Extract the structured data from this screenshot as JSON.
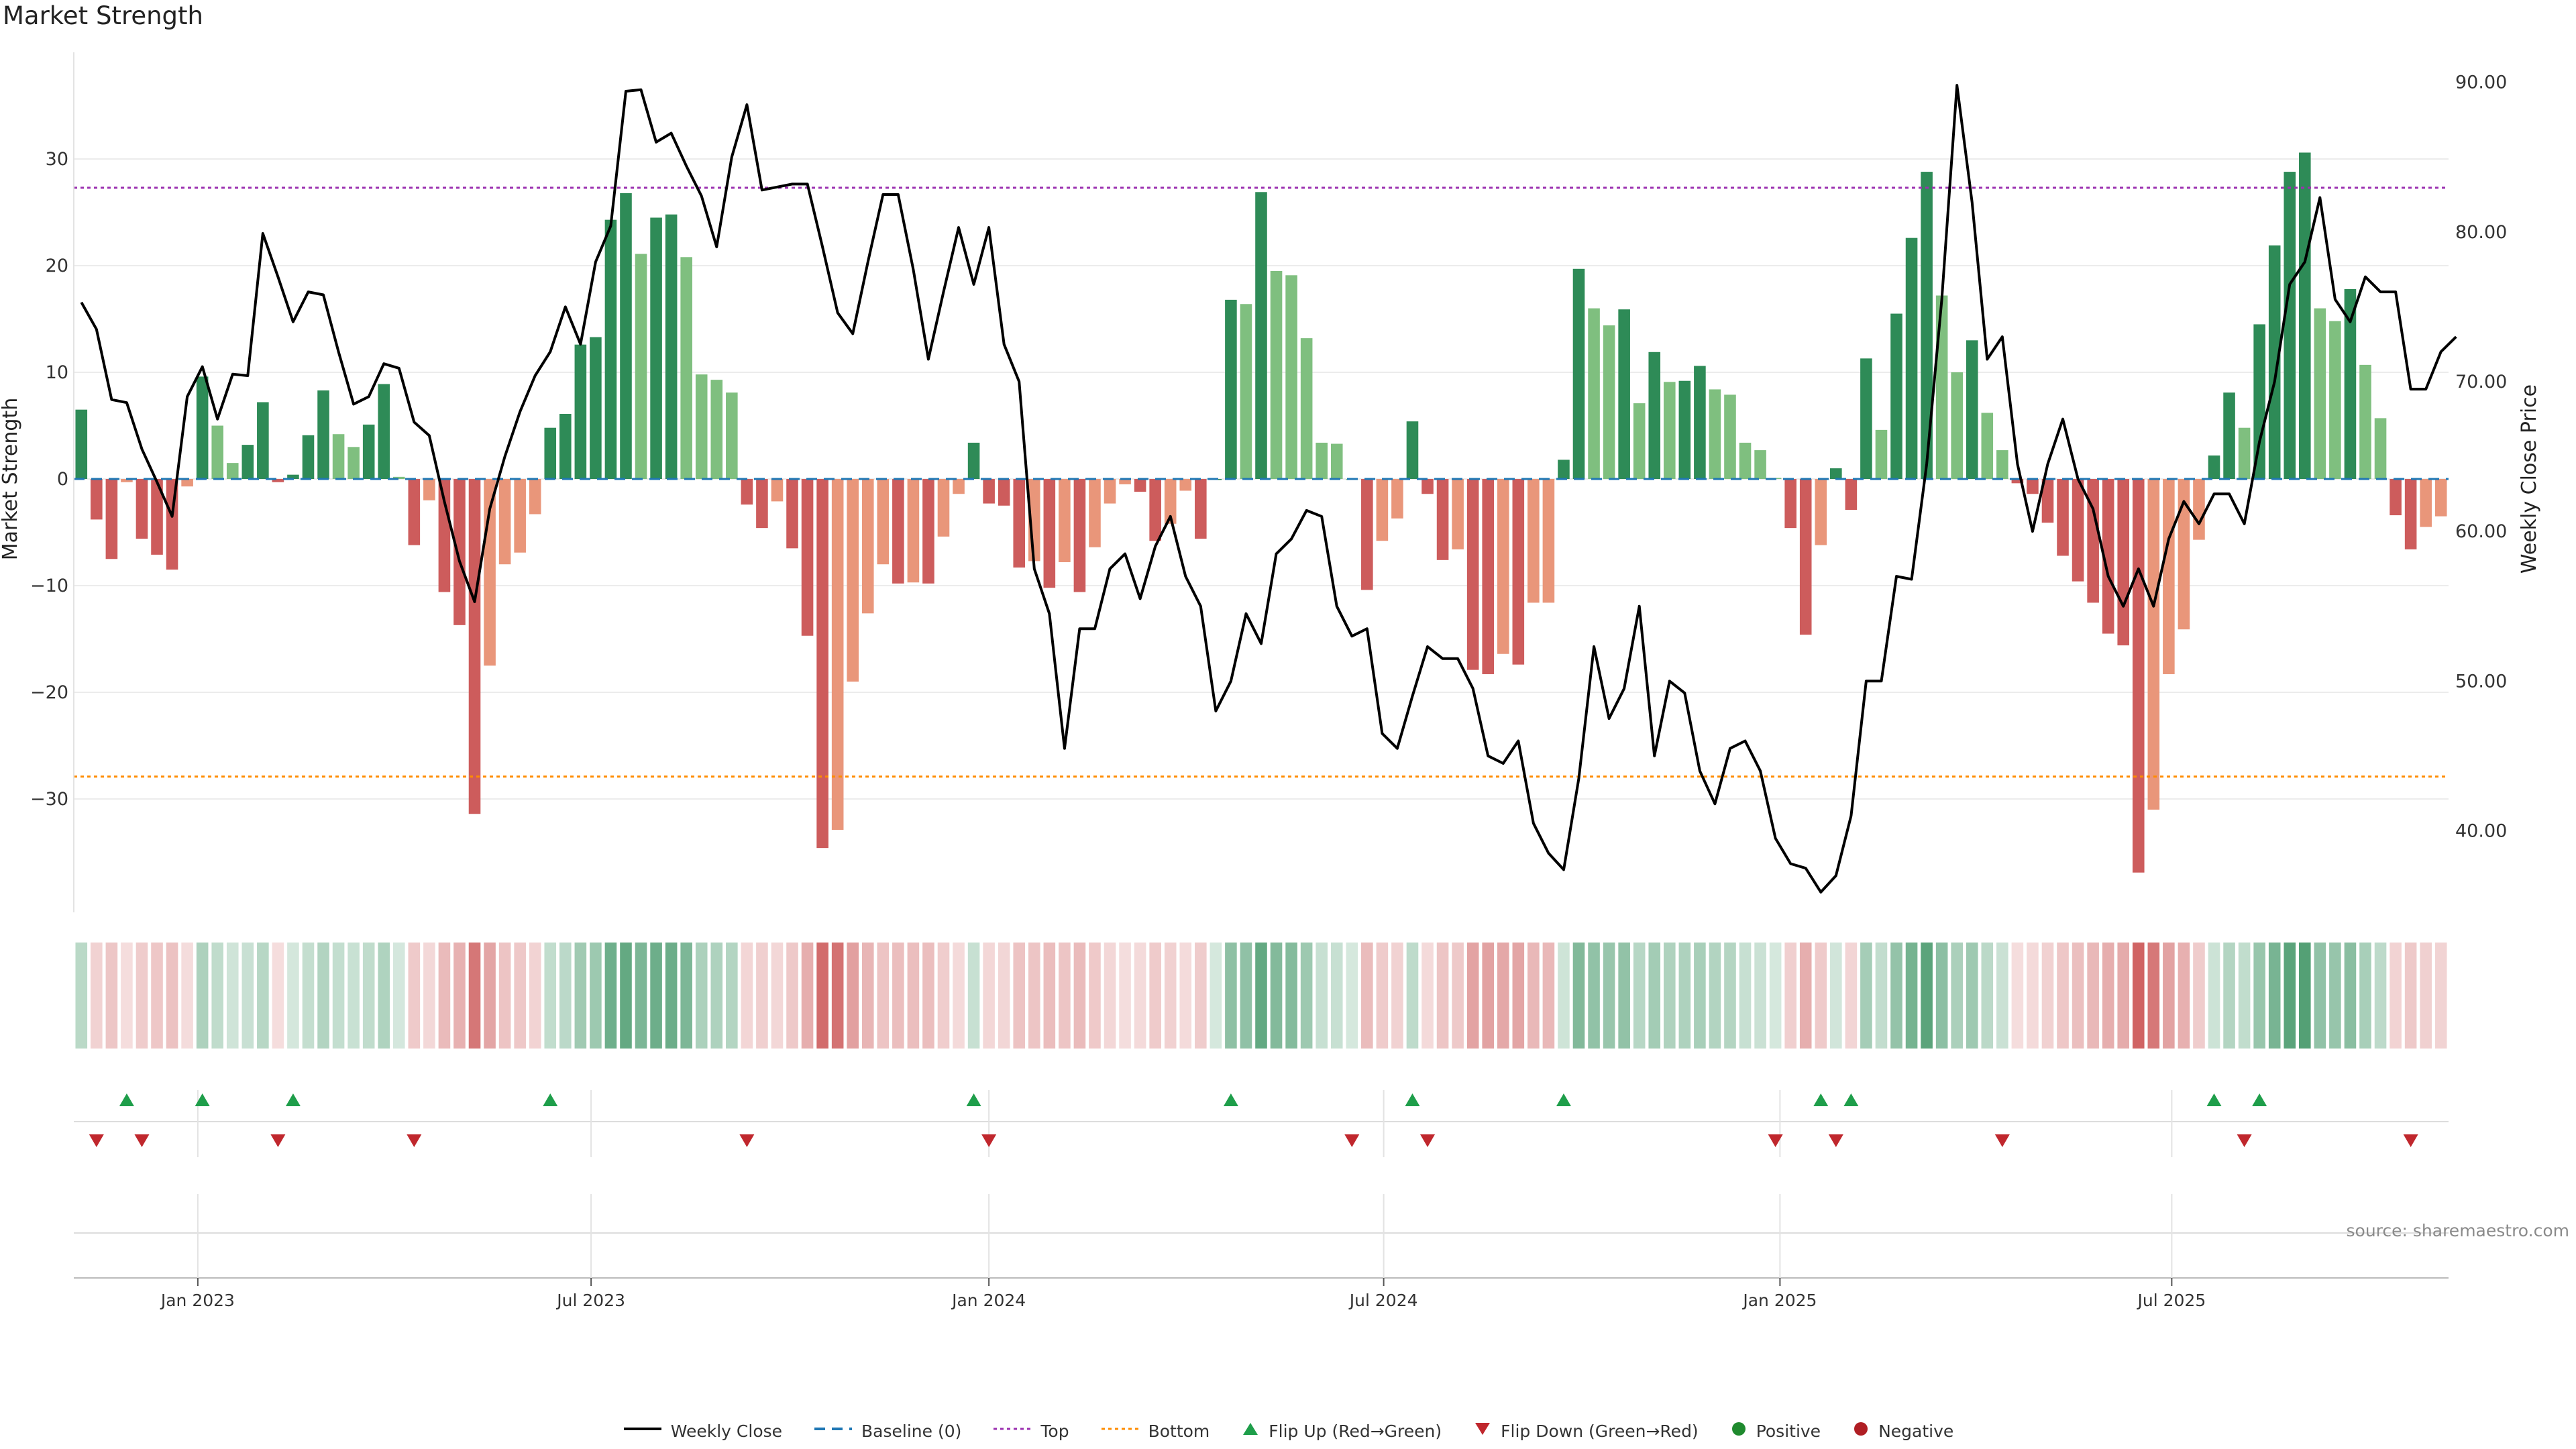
{
  "title": "Market Strength",
  "source": "source: sharemaestro.com",
  "colors": {
    "strong_pos": "#2e8b57",
    "weak_pos": "#7fbf7f",
    "strong_neg": "#cd5c5c",
    "weak_neg": "#e9967a",
    "price": "#000000",
    "baseline": "#1f77b4",
    "top": "#9b30b0",
    "bottom": "#ff8c00",
    "flip_up": "#1e9e4a",
    "flip_down": "#c0272d"
  },
  "chart_data": {
    "type": "bar",
    "title": "Market Strength",
    "ylabel": "Market Strength",
    "y2label": "Weekly Close Price",
    "ylim": [
      -40,
      40
    ],
    "y2lim": [
      35,
      92
    ],
    "yticks": [
      "30",
      "20",
      "10",
      "0",
      "−10",
      "−20",
      "−30"
    ],
    "yticks_values": [
      30,
      20,
      10,
      0,
      -10,
      -20,
      -30
    ],
    "y2ticks": [
      "90.00",
      "80.00",
      "70.00",
      "60.00",
      "50.00",
      "40.00"
    ],
    "y2ticks_values": [
      90,
      80,
      70,
      60,
      50,
      40
    ],
    "x_labels": [
      "Jan 2023",
      "Jul 2023",
      "Jan 2024",
      "Jul 2024",
      "Jan 2025",
      "Jul 2025"
    ],
    "x_label_weeks": [
      8.2,
      34.2,
      60.5,
      86.6,
      112.8,
      138.7
    ],
    "top_line": 27.3,
    "bottom_line": -27.9,
    "strength": [
      6.5,
      -3.8,
      -7.5,
      -0.3,
      -5.6,
      -7.1,
      -8.5,
      -0.7,
      9.6,
      5.0,
      1.5,
      3.2,
      7.2,
      -0.3,
      0.4,
      4.1,
      8.3,
      4.2,
      3.0,
      5.1,
      8.9,
      0.2,
      -6.2,
      -2.0,
      -10.6,
      -13.7,
      -31.4,
      -17.5,
      -8.0,
      -6.9,
      -3.3,
      4.8,
      6.1,
      12.6,
      13.3,
      24.3,
      26.8,
      21.1,
      24.5,
      24.8,
      20.8,
      9.8,
      9.3,
      8.1,
      -2.4,
      -4.6,
      -2.1,
      -6.5,
      -14.7,
      -34.6,
      -32.9,
      -19.0,
      -12.6,
      -8.0,
      -9.8,
      -9.7,
      -9.8,
      -5.4,
      -1.4,
      3.4,
      -2.3,
      -2.5,
      -8.3,
      -7.7,
      -10.2,
      -7.8,
      -10.6,
      -6.4,
      -2.3,
      -0.5,
      -1.2,
      -5.8,
      -4.2,
      -1.1,
      -5.6,
      0.0,
      16.8,
      16.4,
      26.9,
      19.5,
      19.1,
      13.2,
      3.4,
      3.3,
      0.0,
      -10.4,
      -5.8,
      -3.7,
      5.4,
      -1.4,
      -7.6,
      -6.6,
      -17.9,
      -18.3,
      -16.4,
      -17.4,
      -11.6,
      -11.6,
      1.8,
      19.7,
      16.0,
      14.4,
      15.9,
      7.1,
      11.9,
      9.1,
      9.2,
      10.6,
      8.4,
      7.9,
      3.4,
      2.7,
      0.1,
      -4.6,
      -14.6,
      -6.2,
      1.0,
      -2.9,
      11.3,
      4.6,
      15.5,
      22.6,
      28.8,
      17.2,
      10.0,
      13.0,
      6.2,
      2.7,
      -0.4,
      -1.4,
      -4.1,
      -7.2,
      -9.6,
      -11.6,
      -14.5,
      -15.6,
      -36.9,
      -31.0,
      -18.3,
      -14.1,
      -5.7,
      2.2,
      8.1,
      4.8,
      14.5,
      21.9,
      28.8,
      30.6,
      16.0,
      14.8,
      17.8,
      10.7,
      5.7,
      -3.4,
      -6.6,
      -4.5,
      -3.5
    ],
    "price": [
      75.3,
      73.5,
      68.8,
      68.6,
      65.5,
      63.3,
      61.0,
      69.0,
      71.0,
      67.5,
      70.5,
      70.4,
      79.9,
      77.0,
      74.0,
      76.0,
      75.8,
      72.0,
      68.5,
      69.0,
      71.2,
      70.9,
      67.3,
      66.4,
      62.0,
      58.0,
      55.3,
      61.5,
      65.0,
      68.0,
      70.4,
      72.0,
      75.0,
      72.5,
      78.0,
      80.4,
      89.4,
      89.5,
      86.0,
      86.6,
      84.4,
      82.4,
      79.0,
      85.0,
      88.5,
      82.8,
      83.0,
      83.2,
      83.2,
      79.0,
      74.6,
      73.2,
      78.0,
      82.5,
      82.5,
      77.5,
      71.5,
      76.0,
      80.3,
      76.5,
      80.3,
      72.5,
      70.0,
      57.5,
      54.5,
      45.5,
      53.5,
      53.5,
      57.5,
      58.5,
      55.5,
      59.0,
      61.0,
      57.0,
      55.0,
      48.0,
      50.0,
      54.5,
      52.5,
      58.5,
      59.5,
      61.4,
      61.0,
      55.0,
      53.0,
      53.5,
      46.5,
      45.5,
      49.0,
      52.3,
      51.5,
      51.5,
      49.5,
      45.0,
      44.5,
      46.0,
      40.5,
      38.5,
      37.4,
      43.5,
      52.3,
      47.5,
      49.5,
      55.0,
      45.0,
      50.0,
      49.2,
      44.0,
      41.8,
      45.5,
      46.0,
      44.0,
      39.5,
      37.8,
      37.5,
      35.9,
      37.0,
      41.0,
      50.0,
      50.0,
      57.0,
      56.8,
      64.5,
      75.5,
      89.8,
      82.0,
      71.5,
      73.0,
      64.5,
      60.0,
      64.5,
      67.5,
      63.5,
      61.5,
      57.0,
      55.0,
      57.5,
      55.0,
      59.5,
      62.0,
      60.5,
      62.5,
      62.5,
      60.5,
      66.0,
      70.0,
      76.5,
      78.0,
      82.3,
      75.5,
      74.0,
      77.0,
      76.0,
      76.0,
      69.5,
      69.5,
      72.0,
      73.0
    ],
    "flip_up_weeks": [
      3,
      8,
      14,
      31,
      59,
      76,
      88,
      98,
      115,
      117,
      141,
      144
    ],
    "flip_down_weeks": [
      1,
      4,
      13,
      22,
      44,
      60,
      84,
      89,
      112,
      116,
      127,
      143,
      154
    ]
  },
  "legend": [
    {
      "key": "line",
      "label": "Weekly Close"
    },
    {
      "key": "dash",
      "label": "Baseline (0)"
    },
    {
      "key": "top",
      "label": "Top"
    },
    {
      "key": "bottom",
      "label": "Bottom"
    },
    {
      "key": "up",
      "label": "Flip Up (Red→Green)"
    },
    {
      "key": "down",
      "label": "Flip Down (Green→Red)"
    },
    {
      "key": "pos",
      "label": "Positive"
    },
    {
      "key": "neg",
      "label": "Negative"
    }
  ]
}
